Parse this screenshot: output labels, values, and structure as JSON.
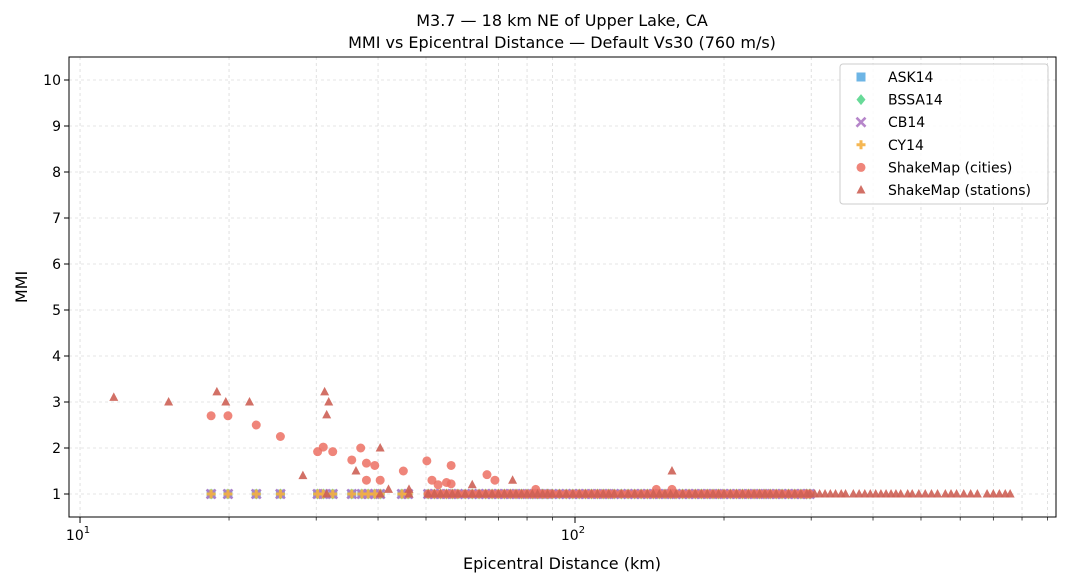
{
  "chart_data": {
    "type": "scatter",
    "title": "M3.7 — 18 km NE of Upper Lake, CA",
    "subtitle": "MMI vs Epicentral Distance — Default Vs30 (760 m/s)",
    "xlabel": "Epicentral Distance (km)",
    "ylabel": "MMI",
    "xscale": "log",
    "xlim": [
      9.5,
      937
    ],
    "ylim": [
      0.5,
      10.5
    ],
    "x_tick_labels": [
      {
        "value": 10,
        "base": "10",
        "exp": "1"
      },
      {
        "value": 100,
        "base": "10",
        "exp": "2"
      }
    ],
    "y_ticks": [
      1,
      2,
      3,
      4,
      5,
      6,
      7,
      8,
      9,
      10
    ],
    "grid": true,
    "legend_position": "top-right",
    "dense_distances": [
      50.5,
      52,
      53.5,
      55,
      56.5,
      58,
      60,
      62,
      64,
      66,
      68,
      70,
      72,
      74,
      76,
      78,
      80,
      82,
      84,
      86,
      88,
      90,
      93,
      96,
      99,
      102,
      105,
      108,
      111,
      114,
      117,
      120,
      124,
      128,
      132,
      136,
      140,
      144,
      148,
      152,
      156,
      160,
      165,
      170,
      175,
      180,
      185,
      190,
      195,
      200,
      206,
      212,
      218,
      224,
      230,
      236,
      242,
      248,
      255,
      262,
      270,
      278,
      286,
      294,
      298
    ],
    "series": [
      {
        "name": "ASK14",
        "marker": "square",
        "color": "#5DADE2",
        "x": [
          18.4,
          19.9,
          22.7,
          25.4,
          30.2,
          31.0,
          32.4,
          35.4,
          37.1,
          38.2,
          39.4,
          40.4,
          44.7,
          46.0
        ],
        "x_include_dense": true,
        "y_const": 1.0
      },
      {
        "name": "BSSA14",
        "marker": "diamond",
        "color": "#58D68D",
        "x": [
          18.4,
          19.9,
          22.7,
          25.4,
          30.2,
          31.0,
          32.4,
          35.4,
          37.1,
          38.2,
          39.4,
          40.4,
          44.7,
          46.0
        ],
        "x_include_dense": true,
        "y_const": 1.0
      },
      {
        "name": "CB14",
        "marker": "x",
        "color": "#AF7AC5",
        "x": [
          18.4,
          19.9,
          22.7,
          25.4,
          30.2,
          31.0,
          32.4,
          35.4,
          37.1,
          38.2,
          39.4,
          40.4,
          44.7,
          46.0
        ],
        "x_include_dense": true,
        "y_const": 1.0
      },
      {
        "name": "CY14",
        "marker": "plus",
        "color": "#F5B041",
        "x": [
          18.4,
          19.9,
          22.7,
          25.4,
          30.2,
          31.0,
          32.4,
          35.4,
          37.1,
          38.2,
          39.4,
          40.4,
          44.7,
          46.0
        ],
        "x_include_dense": true,
        "y_const": 1.0
      },
      {
        "name": "ShakeMap (cities)",
        "marker": "circle",
        "color": "#EC7063",
        "x": [
          18.4,
          19.9,
          22.7,
          25.4,
          30.2,
          31.0,
          32.4,
          35.4,
          36.9,
          37.9,
          37.9,
          39.4,
          40.4,
          45.0,
          50.2,
          51.4,
          52.9,
          55.0,
          56.2,
          56.2,
          66.4,
          68.9,
          83.3,
          146,
          157
        ],
        "y": [
          2.7,
          2.7,
          2.5,
          2.25,
          1.92,
          2.02,
          1.92,
          1.74,
          2.0,
          1.67,
          1.3,
          1.62,
          1.3,
          1.5,
          1.72,
          1.3,
          1.2,
          1.25,
          1.62,
          1.22,
          1.42,
          1.3,
          1.1,
          1.1,
          1.1
        ],
        "x_include_dense": true,
        "dense_y": 1.0
      },
      {
        "name": "ShakeMap (stations)",
        "marker": "triangle",
        "color": "#CD6155",
        "x": [
          11.7,
          15.1,
          18.9,
          19.7,
          22.0,
          28.2,
          31.2,
          31.8,
          31.5,
          36.1,
          40.4,
          42.0,
          46.2,
          62.0,
          74.8,
          157,
          31.5,
          40.4,
          46.2,
          305,
          312,
          320,
          328,
          336,
          345,
          352,
          365,
          375,
          385,
          395,
          405,
          415,
          425,
          435,
          445,
          455,
          470,
          480,
          495,
          510,
          525,
          540,
          560,
          575,
          590,
          610,
          630,
          650,
          680,
          700,
          720,
          740,
          757
        ],
        "y": [
          3.1,
          3.0,
          3.22,
          3.0,
          3.0,
          1.4,
          3.22,
          3.0,
          2.72,
          1.5,
          2.0,
          1.1,
          1.1,
          1.2,
          1.3,
          1.5,
          1.0,
          1.0,
          1.0,
          1,
          1,
          1,
          1,
          1,
          1,
          1,
          1,
          1,
          1,
          1,
          1,
          1,
          1,
          1,
          1,
          1,
          1,
          1,
          1,
          1,
          1,
          1,
          1,
          1,
          1,
          1,
          1,
          1,
          1,
          1,
          1,
          1,
          1
        ],
        "x_include_dense": true,
        "dense_y": 1.0
      }
    ]
  }
}
